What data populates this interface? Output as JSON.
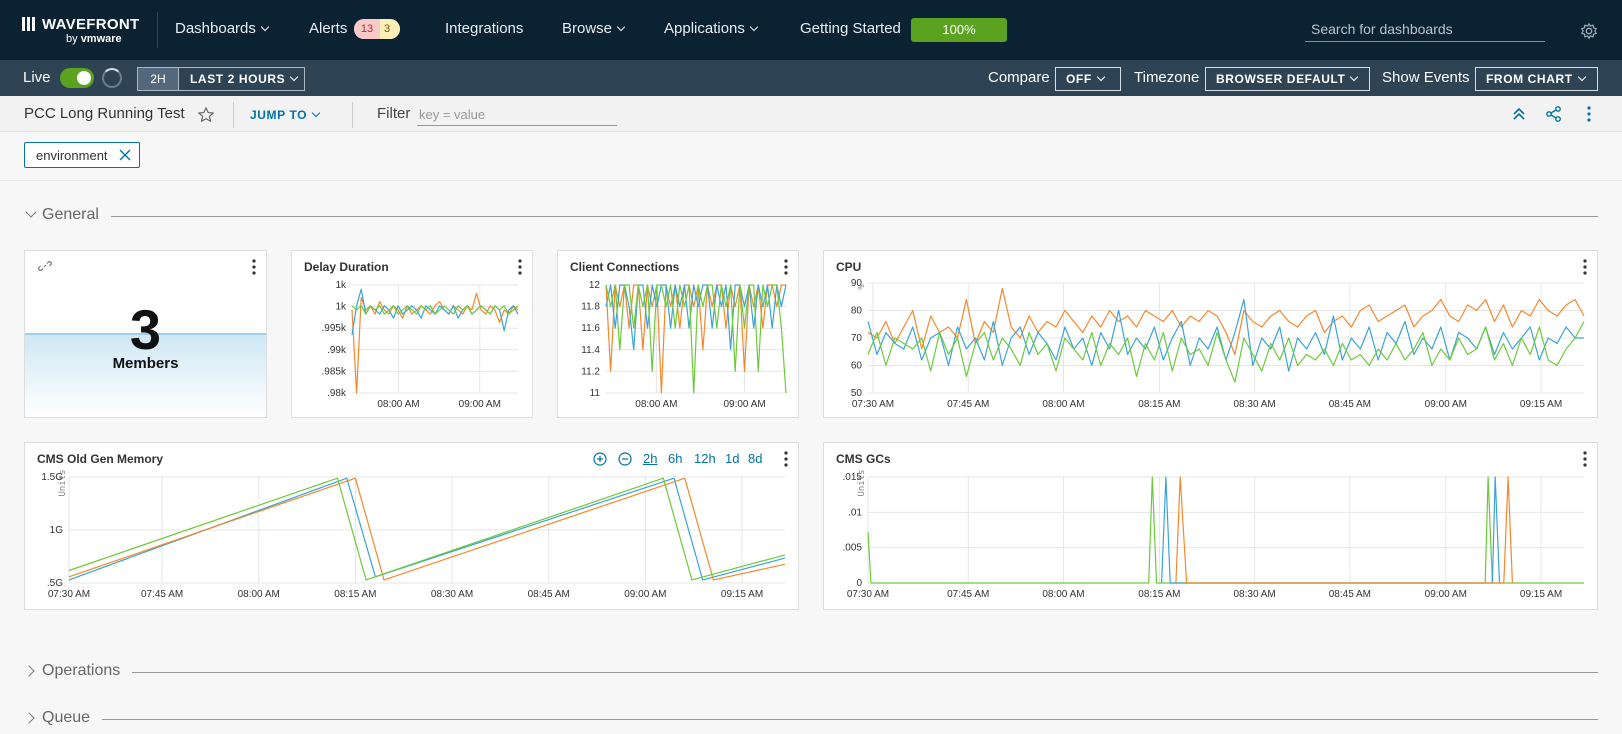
{
  "topnav": {
    "brand": "WAVEFRONT",
    "by": "by",
    "vendor": "vmware",
    "items": [
      {
        "label": "Dashboards",
        "caret": true
      },
      {
        "label": "Alerts",
        "caret": false
      },
      {
        "label": "Integrations",
        "caret": false
      },
      {
        "label": "Browse",
        "caret": true
      },
      {
        "label": "Applications",
        "caret": true
      },
      {
        "label": "Getting Started",
        "caret": false
      }
    ],
    "alerts_red": "13",
    "alerts_yellow": "3",
    "getting_started_progress": "100%",
    "search_placeholder": "Search for dashboards"
  },
  "timebar": {
    "live_label": "Live",
    "live_on": true,
    "quick_range": "2H",
    "range_label": "LAST 2 HOURS",
    "compare_label": "Compare",
    "compare_value": "OFF",
    "timezone_label": "Timezone",
    "timezone_value": "BROWSER DEFAULT",
    "events_label": "Show Events",
    "events_value": "FROM CHART"
  },
  "dashboard": {
    "title": "PCC Long Running Test",
    "jump_to": "JUMP TO",
    "filter_label": "Filter",
    "filter_placeholder": "key = value",
    "chip": "environment"
  },
  "sections": {
    "general": "General",
    "operations": "Operations",
    "queue": "Queue"
  },
  "panels": {
    "members": {
      "value": "3",
      "label": "Members"
    },
    "delay": {
      "title": "Delay Duration"
    },
    "clients": {
      "title": "Client Connections"
    },
    "cpu": {
      "title": "CPU"
    },
    "cms_mem": {
      "title": "CMS Old Gen Memory",
      "ranges": [
        "2h",
        "6h",
        "12h",
        "1d",
        "8d"
      ],
      "active_range": "2h"
    },
    "cms_gcs": {
      "title": "CMS GCs"
    }
  },
  "colors": {
    "series_orange": "#f5872b",
    "series_blue": "#3aa4d6",
    "series_green": "#6cc93a"
  },
  "chart_data": [
    {
      "id": "delay",
      "type": "line",
      "title": "Delay Duration",
      "x_ticks": [
        "08:00 AM",
        "09:00 AM"
      ],
      "y_ticks": [
        "1k",
        "1k",
        ".995k",
        ".99k",
        ".985k",
        ".98k"
      ],
      "ylim": [
        0.978,
        1.004
      ],
      "series": [
        {
          "color": "#f5872b",
          "values": [
            0.998,
            0.978,
            1.001,
            0.998,
            0.999,
            0.997,
            1.0,
            0.998,
            0.997,
            0.999,
            0.998,
            0.996,
            0.999,
            0.997,
            0.998,
            0.999,
            0.998,
            0.997,
            0.999,
            1.0,
            0.998,
            0.997,
            0.999,
            0.998,
            0.997,
            0.999,
            0.998,
            1.002,
            0.998,
            0.997,
            0.999,
            0.998,
            0.995,
            0.998,
            0.997,
            0.999,
            0.998
          ]
        },
        {
          "color": "#3aa4d6",
          "values": [
            0.992,
            0.999,
            1.003,
            0.997,
            0.999,
            0.998,
            0.997,
            0.999,
            0.998,
            0.996,
            0.999,
            0.997,
            0.998,
            0.999,
            0.998,
            0.996,
            0.999,
            0.998,
            0.997,
            0.999,
            0.998,
            0.997,
            0.999,
            0.996,
            0.998,
            0.999,
            0.997,
            0.998,
            0.999,
            0.998,
            0.997,
            0.999,
            0.998,
            0.993,
            0.998,
            0.999,
            0.997
          ]
        },
        {
          "color": "#6cc93a",
          "values": [
            0.999,
            0.998,
            0.999,
            0.997,
            0.999,
            0.998,
            0.999,
            0.997,
            0.998,
            0.999,
            0.997,
            0.998,
            0.999,
            0.998,
            0.997,
            0.999,
            0.998,
            0.999,
            0.997,
            0.998,
            0.999,
            0.998,
            0.997,
            0.999,
            0.998,
            0.999,
            0.997,
            0.998,
            0.999,
            0.998,
            0.997,
            0.999,
            0.998,
            0.999,
            0.997,
            0.998,
            0.999
          ]
        }
      ]
    },
    {
      "id": "clients",
      "type": "line",
      "title": "Client Connections",
      "x_ticks": [
        "08:00 AM",
        "09:00 AM"
      ],
      "y_ticks": [
        "12",
        "11.8",
        "11.6",
        "11.4",
        "11.2",
        "11"
      ],
      "ylim": [
        11,
        12
      ],
      "series": [
        {
          "color": "#f5872b",
          "values": [
            12,
            11.2,
            12,
            11.8,
            12,
            11.6,
            12,
            12,
            11.4,
            12,
            11.8,
            12,
            11,
            12,
            11.8,
            12,
            11.6,
            12,
            12,
            11.8,
            12,
            11.4,
            12,
            11.8,
            12,
            12,
            11.6,
            12,
            11.8,
            12,
            11.2,
            12,
            11.8,
            12,
            11.6,
            12,
            12,
            11.8,
            12,
            12
          ]
        },
        {
          "color": "#3aa4d6",
          "values": [
            11.8,
            12,
            11.6,
            12,
            12,
            11.8,
            11.4,
            12,
            12,
            11.6,
            12,
            11.8,
            12,
            12,
            11.6,
            12,
            11.8,
            12,
            11.6,
            12,
            11.8,
            12,
            12,
            11.6,
            12,
            11.8,
            12,
            11.4,
            12,
            12,
            11.8,
            12,
            11.6,
            12,
            11.8,
            12,
            11.6,
            12,
            11.8,
            12
          ]
        },
        {
          "color": "#6cc93a",
          "values": [
            12,
            11.8,
            12,
            11.4,
            12,
            12,
            11.6,
            12,
            11.8,
            12,
            11.2,
            12,
            12,
            11.8,
            12,
            11.6,
            12,
            11.8,
            12,
            11,
            12,
            11.8,
            12,
            12,
            11.6,
            12,
            11.8,
            12,
            11.2,
            12,
            11.6,
            12,
            12,
            11.2,
            12,
            11.8,
            12,
            12,
            11.6,
            11
          ]
        }
      ]
    },
    {
      "id": "cpu",
      "type": "line",
      "title": "CPU",
      "unit": "%",
      "x_ticks": [
        "07:30 AM",
        "07:45 AM",
        "08:00 AM",
        "08:15 AM",
        "08:30 AM",
        "08:45 AM",
        "09:00 AM",
        "09:15 AM"
      ],
      "y_ticks": [
        "90",
        "80",
        "70",
        "60",
        "50"
      ],
      "ylim": [
        50,
        90
      ],
      "series": [
        {
          "color": "#f5872b",
          "values": [
            72,
            70,
            76,
            68,
            74,
            80,
            66,
            78,
            72,
            74,
            70,
            84,
            68,
            76,
            72,
            88,
            74,
            70,
            78,
            72,
            76,
            74,
            80,
            76,
            72,
            78,
            74,
            80,
            76,
            78,
            74,
            80,
            78,
            76,
            80,
            74,
            78,
            76,
            80,
            78,
            72,
            64,
            80,
            76,
            74,
            78,
            80,
            76,
            74,
            78,
            80,
            72,
            76,
            78,
            74,
            80,
            82,
            76,
            78,
            80,
            82,
            74,
            78,
            80,
            84,
            78,
            76,
            82,
            80,
            84,
            76,
            82,
            74,
            80,
            78,
            84,
            80,
            78,
            82,
            84,
            78
          ]
        },
        {
          "color": "#3aa4d6",
          "values": [
            76,
            64,
            72,
            68,
            66,
            74,
            62,
            70,
            72,
            60,
            74,
            66,
            70,
            62,
            76,
            60,
            70,
            74,
            64,
            72,
            68,
            62,
            74,
            66,
            70,
            60,
            72,
            66,
            80,
            64,
            70,
            66,
            74,
            62,
            70,
            76,
            60,
            70,
            66,
            74,
            62,
            72,
            84,
            60,
            70,
            66,
            74,
            58,
            70,
            66,
            72,
            64,
            78,
            62,
            70,
            66,
            74,
            62,
            72,
            68,
            76,
            64,
            70,
            66,
            74,
            62,
            72,
            70,
            66,
            74,
            64,
            72,
            66,
            70,
            74,
            62,
            70,
            68,
            74,
            70,
            70
          ]
        },
        {
          "color": "#6cc93a",
          "values": [
            64,
            72,
            60,
            70,
            68,
            66,
            70,
            58,
            72,
            64,
            70,
            56,
            68,
            72,
            62,
            70,
            66,
            60,
            72,
            64,
            68,
            58,
            70,
            66,
            62,
            72,
            60,
            68,
            64,
            70,
            56,
            68,
            62,
            72,
            58,
            70,
            64,
            66,
            60,
            72,
            62,
            54,
            70,
            64,
            58,
            68,
            62,
            70,
            60,
            64,
            62,
            66,
            60,
            68,
            62,
            64,
            60,
            66,
            62,
            68,
            62,
            66,
            72,
            60,
            66,
            62,
            70,
            64,
            66,
            74,
            62,
            68,
            60,
            70,
            64,
            74,
            62,
            60,
            66,
            70,
            76
          ]
        }
      ]
    },
    {
      "id": "cms_mem",
      "type": "line",
      "title": "CMS Old Gen Memory",
      "unit": "Units",
      "x_ticks": [
        "07:30 AM",
        "07:45 AM",
        "08:00 AM",
        "08:15 AM",
        "08:30 AM",
        "08:45 AM",
        "09:00 AM",
        "09:15 AM"
      ],
      "y_ticks": [
        "1.5G",
        "1G",
        ".5G"
      ],
      "ylim": [
        0,
        1.7
      ],
      "series": [
        {
          "color": "#3aa4d6",
          "points": [
            [
              0,
              0.05
            ],
            [
              0.388,
              1.68
            ],
            [
              0.428,
              0.1
            ],
            [
              0.845,
              1.68
            ],
            [
              0.885,
              0.05
            ],
            [
              1,
              0.4
            ]
          ]
        },
        {
          "color": "#f5872b",
          "points": [
            [
              0,
              0.1
            ],
            [
              0.4,
              1.68
            ],
            [
              0.44,
              0.05
            ],
            [
              0.86,
              1.68
            ],
            [
              0.9,
              0.05
            ],
            [
              1,
              0.3
            ]
          ]
        },
        {
          "color": "#6cc93a",
          "points": [
            [
              0,
              0.2
            ],
            [
              0.375,
              1.68
            ],
            [
              0.415,
              0.05
            ],
            [
              0.83,
              1.68
            ],
            [
              0.87,
              0.05
            ],
            [
              1,
              0.45
            ]
          ]
        }
      ]
    },
    {
      "id": "cms_gcs",
      "type": "line",
      "title": "CMS GCs",
      "unit": "Units",
      "x_ticks": [
        "07:30 AM",
        "07:45 AM",
        "08:00 AM",
        "08:15 AM",
        "08:30 AM",
        "08:45 AM",
        "09:00 AM",
        "09:15 AM"
      ],
      "y_ticks": [
        ".015",
        ".01",
        ".005",
        "0"
      ],
      "ylim": [
        0,
        0.0167
      ],
      "series": [
        {
          "color": "#6cc93a",
          "points": [
            [
              0,
              0.008
            ],
            [
              0.004,
              0
            ],
            [
              0.392,
              0
            ],
            [
              0.397,
              0.0167
            ],
            [
              0.403,
              0
            ],
            [
              0.862,
              0
            ],
            [
              0.866,
              0.0167
            ],
            [
              0.872,
              0
            ],
            [
              1,
              0
            ]
          ]
        },
        {
          "color": "#3aa4d6",
          "points": [
            [
              0.41,
              0
            ],
            [
              0.416,
              0.0167
            ],
            [
              0.422,
              0
            ],
            [
              0.872,
              0
            ],
            [
              0.876,
              0.0167
            ],
            [
              0.882,
              0
            ]
          ]
        },
        {
          "color": "#f5872b",
          "points": [
            [
              0.43,
              0
            ],
            [
              0.436,
              0.0167
            ],
            [
              0.445,
              0
            ],
            [
              0.888,
              0
            ],
            [
              0.894,
              0.0167
            ],
            [
              0.9,
              0
            ]
          ]
        }
      ]
    }
  ]
}
